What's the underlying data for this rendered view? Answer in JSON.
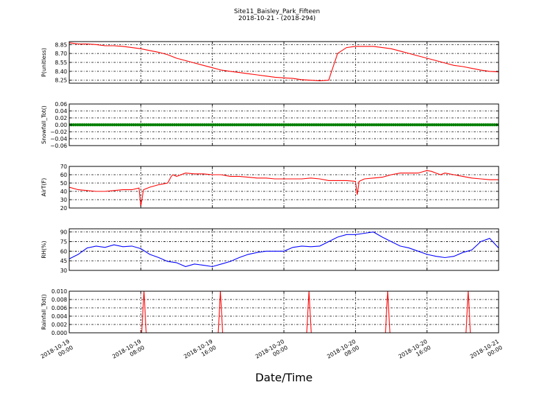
{
  "figure": {
    "title": "Site11_Baisley_Park_Fifteen",
    "subtitle": "2018-10-21 - (2018-294)",
    "xlabel": "Date/Time"
  },
  "chart_data": [
    {
      "type": "line",
      "ylabel": "P(unitless)",
      "color": "#ff0000",
      "ylim": [
        8.2,
        8.9
      ],
      "yticks": [
        8.25,
        8.4,
        8.55,
        8.7,
        8.85
      ],
      "ytick_labels": [
        "8.25",
        "8.40",
        "8.55",
        "8.70",
        "8.85"
      ],
      "grid": true,
      "x": [
        0,
        1,
        2,
        3,
        4,
        5,
        6,
        7,
        8,
        9,
        10,
        11,
        12,
        13,
        14,
        15,
        16,
        17,
        18,
        19,
        20,
        21,
        22,
        23,
        24,
        25,
        26,
        27,
        28,
        29,
        30,
        31,
        32,
        33,
        34,
        35,
        36,
        37,
        38,
        39,
        40,
        41,
        42,
        43,
        44,
        45,
        46,
        47,
        48
      ],
      "values": [
        8.88,
        8.86,
        8.86,
        8.85,
        8.83,
        8.83,
        8.82,
        8.8,
        8.78,
        8.75,
        8.72,
        8.68,
        8.62,
        8.58,
        8.54,
        8.5,
        8.46,
        8.42,
        8.4,
        8.38,
        8.36,
        8.34,
        8.32,
        8.3,
        8.29,
        8.28,
        8.26,
        8.25,
        8.24,
        8.25,
        8.7,
        8.8,
        8.82,
        8.82,
        8.82,
        8.8,
        8.78,
        8.74,
        8.7,
        8.66,
        8.62,
        8.58,
        8.54,
        8.5,
        8.48,
        8.45,
        8.42,
        8.4,
        8.39
      ]
    },
    {
      "type": "scatter",
      "ylabel": "Snowfall_Tot()",
      "color": "#008000",
      "ylim": [
        -0.06,
        0.06
      ],
      "yticks": [
        -0.06,
        -0.04,
        -0.02,
        0.0,
        0.02,
        0.04,
        0.06
      ],
      "ytick_labels": [
        "−0.06",
        "−0.04",
        "−0.02",
        "0.00",
        "0.02",
        "0.04",
        "0.06"
      ],
      "grid": true,
      "x_range": [
        0,
        48
      ],
      "constant_value": 0.0
    },
    {
      "type": "line",
      "ylabel": "AirT(F)",
      "color": "#ff0000",
      "ylim": [
        20,
        70
      ],
      "yticks": [
        20,
        30,
        40,
        50,
        60,
        70
      ],
      "ytick_labels": [
        "20",
        "30",
        "40",
        "50",
        "60",
        "70"
      ],
      "grid": true,
      "x": [
        0,
        1,
        2,
        3,
        4,
        5,
        6,
        7,
        7.8,
        8.0,
        8.3,
        9,
        10,
        11,
        11.4,
        11.6,
        12,
        13,
        14,
        15,
        16,
        17,
        18,
        19,
        20,
        21,
        22,
        23,
        24,
        25,
        26,
        27,
        28,
        29,
        31,
        32,
        32.2,
        32.4,
        33,
        34,
        35,
        36,
        37,
        38,
        39,
        40,
        40.5,
        41,
        41.5,
        42,
        43,
        44,
        45,
        46,
        47,
        48
      ],
      "values": [
        45,
        42,
        41,
        40,
        40,
        41,
        42,
        42,
        44,
        22,
        42,
        45,
        48,
        50,
        58,
        60,
        58,
        62,
        61,
        61,
        60,
        60,
        58,
        58,
        57,
        56,
        56,
        55,
        55,
        55,
        55,
        56,
        55,
        53,
        53,
        52,
        36,
        52,
        55,
        56,
        57,
        60,
        62,
        62,
        62,
        65,
        64,
        62,
        60,
        62,
        60,
        58,
        56,
        55,
        54,
        54
      ]
    },
    {
      "type": "line",
      "ylabel": "RH(%)",
      "color": "#0000ff",
      "ylim": [
        30,
        95
      ],
      "yticks": [
        30,
        45,
        60,
        75,
        90
      ],
      "ytick_labels": [
        "30",
        "45",
        "60",
        "75",
        "90"
      ],
      "grid": true,
      "x": [
        0,
        1,
        2,
        3,
        4,
        5,
        6,
        7,
        8,
        9,
        10,
        11,
        12,
        13,
        14,
        15,
        16,
        17,
        18,
        19,
        20,
        21,
        22,
        23,
        24,
        25,
        26,
        27,
        28,
        29,
        30,
        31,
        32,
        33,
        34,
        35,
        36,
        37,
        38,
        39,
        40,
        41,
        42,
        43,
        44,
        45,
        46,
        47,
        48
      ],
      "values": [
        48,
        55,
        65,
        68,
        66,
        70,
        67,
        68,
        64,
        55,
        50,
        44,
        42,
        36,
        40,
        38,
        36,
        40,
        44,
        50,
        55,
        58,
        60,
        60,
        60,
        66,
        68,
        67,
        68,
        75,
        82,
        86,
        86,
        88,
        90,
        82,
        75,
        68,
        65,
        60,
        55,
        52,
        50,
        52,
        58,
        62,
        75,
        80,
        65
      ]
    },
    {
      "type": "line",
      "ylabel": "Rainfall_Tot()",
      "color": "#ff0000",
      "ylim": [
        0.0,
        0.01
      ],
      "yticks": [
        0.0,
        0.002,
        0.004,
        0.006,
        0.008,
        0.01
      ],
      "ytick_labels": [
        "0.000",
        "0.002",
        "0.004",
        "0.006",
        "0.008",
        "0.010"
      ],
      "grid": true,
      "xticks": [
        0,
        8,
        16,
        24,
        32,
        40,
        48
      ],
      "xtick_labels": [
        [
          "2018-10-19",
          "00:00"
        ],
        [
          "2018-10-19",
          "08:00"
        ],
        [
          "2018-10-19",
          "16:00"
        ],
        [
          "2018-10-20",
          "00:00"
        ],
        [
          "2018-10-20",
          "08:00"
        ],
        [
          "2018-10-20",
          "16:00"
        ],
        [
          "2018-10-21",
          "00:00"
        ]
      ],
      "spikes_at": [
        8.35,
        16.9,
        26.8,
        35.6,
        44.6
      ],
      "spike_value": 0.01
    }
  ]
}
